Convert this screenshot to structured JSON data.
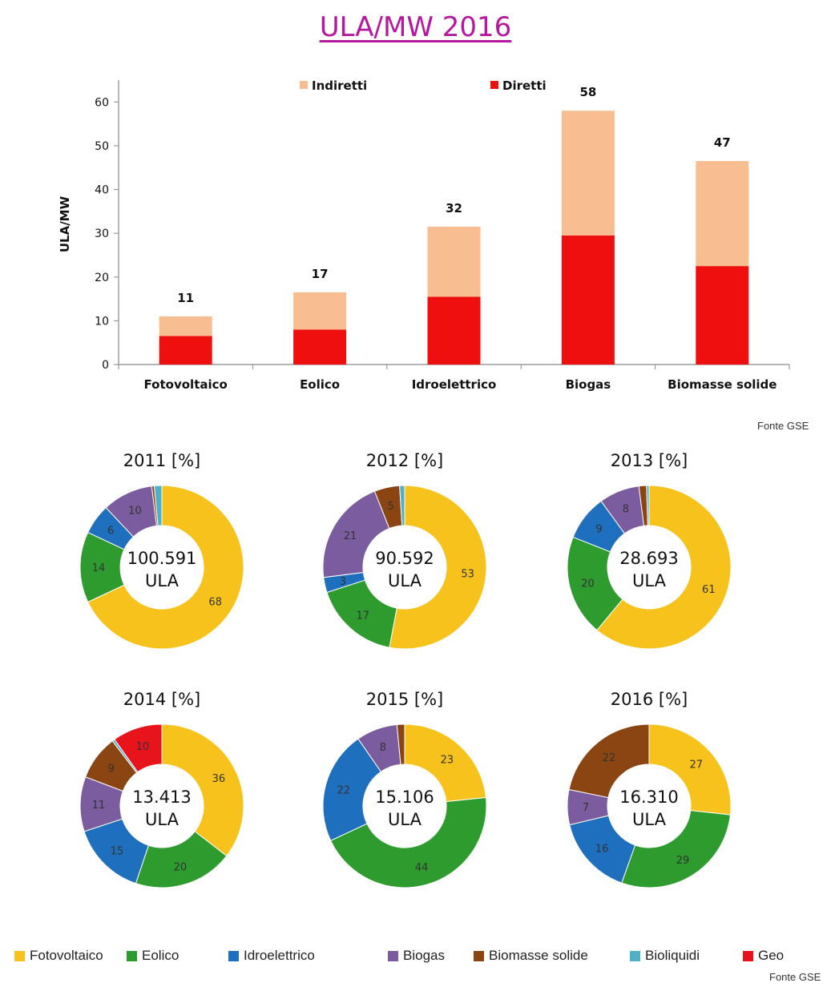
{
  "title": "ULA/MW 2016",
  "source_top": "Fonte GSE",
  "source_bottom": "Fonte GSE",
  "colors": {
    "indiretti": "#f8bd90",
    "diretti": "#ef0f0f",
    "Fotovoltaico": "#f7c21b",
    "Eolico": "#2e9b2e",
    "Idroelettrico": "#1f6fbf",
    "Biogas": "#7b5c9e",
    "Biomasse solide": "#8b4513",
    "Bioliquidi": "#4fb0c6",
    "Geo": "#e8141c"
  },
  "chart_data": [
    {
      "type": "bar",
      "stacked": true,
      "categories": [
        "Fotovoltaico",
        "Eolico",
        "Idroelettrico",
        "Biogas",
        "Biomasse solide"
      ],
      "series": [
        {
          "name": "Diretti",
          "values": [
            6.5,
            8,
            15.5,
            29.5,
            22.5
          ]
        },
        {
          "name": "Indiretti",
          "values": [
            4.5,
            8.5,
            16,
            28.5,
            24
          ]
        }
      ],
      "totals": [
        "11",
        "17",
        "32",
        "58",
        "47"
      ],
      "ylabel": "ULA/MW",
      "yticks": [
        "0",
        "10",
        "20",
        "30",
        "40",
        "50",
        "60"
      ],
      "ylim": [
        0,
        65
      ],
      "legend": [
        "Indiretti",
        "Diretti"
      ],
      "legend_position": "top"
    },
    {
      "type": "pie",
      "title": "2011 [%]",
      "center": [
        "100.591",
        "ULA"
      ],
      "slices": [
        {
          "name": "Fotovoltaico",
          "value": 68,
          "label": "68"
        },
        {
          "name": "Eolico",
          "value": 14,
          "label": "14"
        },
        {
          "name": "Idroelettrico",
          "value": 6,
          "label": "6"
        },
        {
          "name": "Biogas",
          "value": 10,
          "label": "10"
        },
        {
          "name": "Biomasse solide",
          "value": 0.5,
          "label": ""
        },
        {
          "name": "Bioliquidi",
          "value": 1.5,
          "label": ""
        }
      ]
    },
    {
      "type": "pie",
      "title": "2012 [%]",
      "center": [
        "90.592",
        "ULA"
      ],
      "slices": [
        {
          "name": "Fotovoltaico",
          "value": 53,
          "label": "53"
        },
        {
          "name": "Eolico",
          "value": 17,
          "label": "17"
        },
        {
          "name": "Idroelettrico",
          "value": 3,
          "label": "3"
        },
        {
          "name": "Biogas",
          "value": 21,
          "label": "21"
        },
        {
          "name": "Biomasse solide",
          "value": 5,
          "label": "5"
        },
        {
          "name": "Bioliquidi",
          "value": 1,
          "label": ""
        }
      ]
    },
    {
      "type": "pie",
      "title": "2013 [%]",
      "center": [
        "28.693",
        "ULA"
      ],
      "slices": [
        {
          "name": "Fotovoltaico",
          "value": 61,
          "label": "61"
        },
        {
          "name": "Eolico",
          "value": 20,
          "label": "20"
        },
        {
          "name": "Idroelettrico",
          "value": 9,
          "label": "9"
        },
        {
          "name": "Biogas",
          "value": 8,
          "label": "8"
        },
        {
          "name": "Biomasse solide",
          "value": 1.5,
          "label": ""
        },
        {
          "name": "Bioliquidi",
          "value": 0.5,
          "label": ""
        }
      ]
    },
    {
      "type": "pie",
      "title": "2014 [%]",
      "center": [
        "13.413",
        "ULA"
      ],
      "slices": [
        {
          "name": "Fotovoltaico",
          "value": 36,
          "label": "36"
        },
        {
          "name": "Eolico",
          "value": 20,
          "label": "20"
        },
        {
          "name": "Idroelettrico",
          "value": 15,
          "label": "15"
        },
        {
          "name": "Biogas",
          "value": 11,
          "label": "11"
        },
        {
          "name": "Biomasse solide",
          "value": 9,
          "label": "9"
        },
        {
          "name": "Bioliquidi",
          "value": 0.5,
          "label": ""
        },
        {
          "name": "Geo",
          "value": 10,
          "label": "10"
        }
      ]
    },
    {
      "type": "pie",
      "title": "2015 [%]",
      "center": [
        "15.106",
        "ULA"
      ],
      "slices": [
        {
          "name": "Fotovoltaico",
          "value": 23,
          "label": "23"
        },
        {
          "name": "Eolico",
          "value": 44,
          "label": "44"
        },
        {
          "name": "Idroelettrico",
          "value": 22,
          "label": "22"
        },
        {
          "name": "Biogas",
          "value": 8,
          "label": "8"
        },
        {
          "name": "Biomasse solide",
          "value": 1.5,
          "label": ""
        }
      ]
    },
    {
      "type": "pie",
      "title": "2016 [%]",
      "center": [
        "16.310",
        "ULA"
      ],
      "slices": [
        {
          "name": "Fotovoltaico",
          "value": 27,
          "label": "27"
        },
        {
          "name": "Eolico",
          "value": 29,
          "label": "29"
        },
        {
          "name": "Idroelettrico",
          "value": 16,
          "label": "16"
        },
        {
          "name": "Biogas",
          "value": 7,
          "label": "7"
        },
        {
          "name": "Biomasse solide",
          "value": 22,
          "label": "22"
        }
      ]
    }
  ],
  "legend": [
    "Fotovoltaico",
    "Eolico",
    "Idroelettrico",
    "Biogas",
    "Biomasse solide",
    "Bioliquidi",
    "Geo"
  ]
}
